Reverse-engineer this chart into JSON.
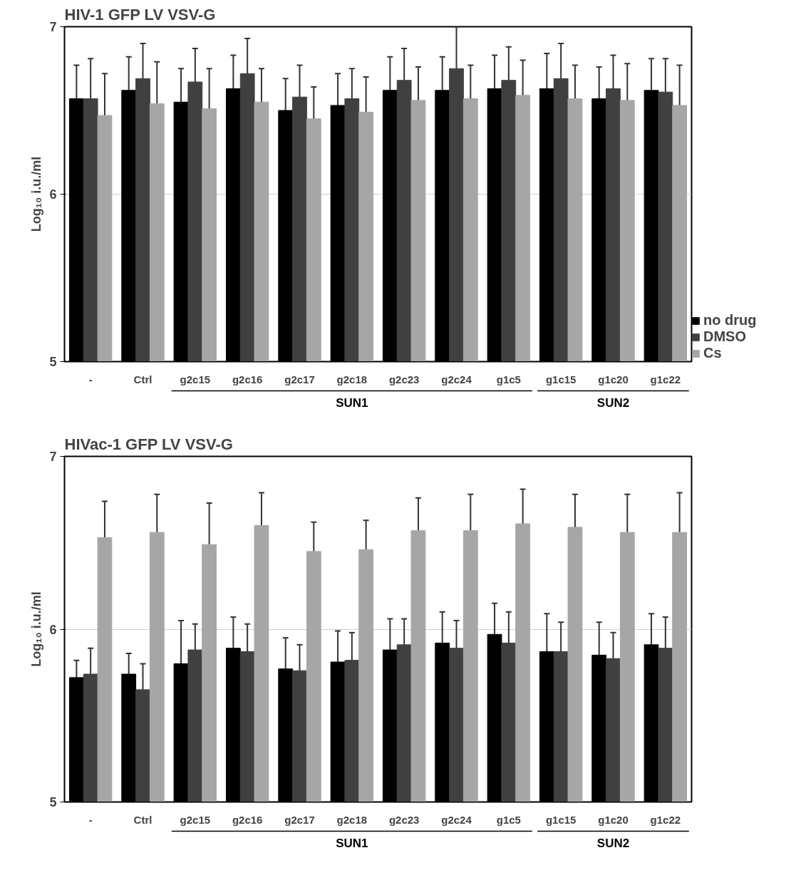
{
  "chart_data": [
    {
      "type": "bar",
      "title": "HIV-1 GFP LV VSV-G",
      "ylabel": "Log₁₀ i.u./ml",
      "categories": [
        "-",
        "Ctrl",
        "g2c15",
        "g2c16",
        "g2c17",
        "g2c18",
        "g2c23",
        "g2c24",
        "g1c5",
        "g1c15",
        "g1c20",
        "g1c22"
      ],
      "ylim": [
        5,
        7
      ],
      "yticks": [
        5,
        6,
        7
      ],
      "grid": "y",
      "legend": "bottom right",
      "annotations": [
        "SUN1",
        "SUN2"
      ],
      "series": [
        {
          "name": "no drug",
          "color": "#000000",
          "values": [
            6.57,
            6.62,
            6.55,
            6.63,
            6.5,
            6.53,
            6.62,
            6.62,
            6.63,
            6.63,
            6.57,
            6.62
          ],
          "errors": [
            [
              6.57,
              6.77
            ],
            [
              6.62,
              6.82
            ],
            [
              6.55,
              6.75
            ],
            [
              6.63,
              6.83
            ],
            [
              6.5,
              6.69
            ],
            [
              6.53,
              6.72
            ],
            [
              6.62,
              6.82
            ],
            [
              6.62,
              6.82
            ],
            [
              6.63,
              6.83
            ],
            [
              6.63,
              6.84
            ],
            [
              6.57,
              6.76
            ],
            [
              6.62,
              6.81
            ]
          ]
        },
        {
          "name": "DMSO",
          "color": "#404040",
          "values": [
            6.57,
            6.69,
            6.67,
            6.72,
            6.58,
            6.57,
            6.68,
            6.75,
            6.68,
            6.69,
            6.63,
            6.61
          ],
          "errors": [
            [
              6.57,
              6.81
            ],
            [
              6.69,
              6.9
            ],
            [
              6.67,
              6.87
            ],
            [
              6.72,
              6.93
            ],
            [
              6.58,
              6.77
            ],
            [
              6.57,
              6.75
            ],
            [
              6.68,
              6.87
            ],
            [
              6.75,
              7.0
            ],
            [
              6.68,
              6.88
            ],
            [
              6.69,
              6.9
            ],
            [
              6.63,
              6.83
            ],
            [
              6.61,
              6.81
            ]
          ]
        },
        {
          "name": "Cs",
          "color": "#a6a6a6",
          "values": [
            6.47,
            6.54,
            6.51,
            6.55,
            6.45,
            6.49,
            6.56,
            6.57,
            6.59,
            6.57,
            6.56,
            6.53
          ],
          "errors": [
            [
              6.47,
              6.72
            ],
            [
              6.54,
              6.79
            ],
            [
              6.51,
              6.75
            ],
            [
              6.55,
              6.75
            ],
            [
              6.45,
              6.64
            ],
            [
              6.49,
              6.7
            ],
            [
              6.56,
              6.76
            ],
            [
              6.57,
              6.77
            ],
            [
              6.59,
              6.8
            ],
            [
              6.57,
              6.77
            ],
            [
              6.56,
              6.78
            ],
            [
              6.53,
              6.77
            ]
          ]
        }
      ]
    },
    {
      "type": "bar",
      "title": "HIVac-1 GFP LV VSV-G",
      "ylabel": "Log₁₀ i.u./ml",
      "categories": [
        "-",
        "Ctrl",
        "g2c15",
        "g2c16",
        "g2c17",
        "g2c18",
        "g2c23",
        "g2c24",
        "g1c5",
        "g1c15",
        "g1c20",
        "g1c22"
      ],
      "ylim": [
        5,
        7
      ],
      "yticks": [
        5,
        6,
        7
      ],
      "grid": "y",
      "annotations": [
        "SUN1",
        "SUN2"
      ],
      "series": [
        {
          "color": "#000000",
          "values": [
            5.72,
            5.74,
            5.8,
            5.89,
            5.77,
            5.81,
            5.88,
            5.92,
            5.97,
            5.87,
            5.85,
            5.91
          ],
          "errors": [
            [
              5.72,
              5.82
            ],
            [
              5.74,
              5.86
            ],
            [
              5.8,
              6.05
            ],
            [
              5.89,
              6.07
            ],
            [
              5.77,
              5.95
            ],
            [
              5.81,
              5.99
            ],
            [
              5.88,
              6.06
            ],
            [
              5.92,
              6.1
            ],
            [
              5.97,
              6.15
            ],
            [
              5.87,
              6.09
            ],
            [
              5.85,
              6.04
            ],
            [
              5.91,
              6.09
            ]
          ]
        },
        {
          "color": "#404040",
          "values": [
            5.74,
            5.65,
            5.88,
            5.87,
            5.76,
            5.82,
            5.91,
            5.89,
            5.92,
            5.87,
            5.83,
            5.89
          ],
          "errors": [
            [
              5.74,
              5.89
            ],
            [
              5.65,
              5.8
            ],
            [
              5.88,
              6.03
            ],
            [
              5.87,
              6.03
            ],
            [
              5.76,
              5.91
            ],
            [
              5.82,
              5.98
            ],
            [
              5.91,
              6.06
            ],
            [
              5.89,
              6.05
            ],
            [
              5.92,
              6.1
            ],
            [
              5.87,
              6.04
            ],
            [
              5.83,
              5.98
            ],
            [
              5.89,
              6.07
            ]
          ]
        },
        {
          "color": "#a6a6a6",
          "values": [
            6.53,
            6.56,
            6.49,
            6.6,
            6.45,
            6.46,
            6.57,
            6.57,
            6.61,
            6.59,
            6.56,
            6.56
          ],
          "errors": [
            [
              6.53,
              6.74
            ],
            [
              6.56,
              6.78
            ],
            [
              6.49,
              6.73
            ],
            [
              6.6,
              6.79
            ],
            [
              6.45,
              6.62
            ],
            [
              6.46,
              6.63
            ],
            [
              6.57,
              6.76
            ],
            [
              6.57,
              6.78
            ],
            [
              6.61,
              6.81
            ],
            [
              6.59,
              6.78
            ],
            [
              6.56,
              6.78
            ],
            [
              6.56,
              6.79
            ]
          ]
        }
      ]
    }
  ]
}
